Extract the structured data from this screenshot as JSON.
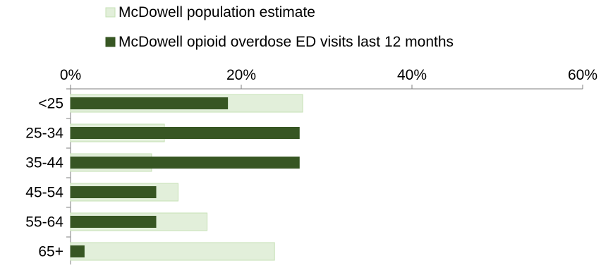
{
  "chart_data": {
    "type": "bar",
    "orientation": "horizontal",
    "title": "",
    "xlabel": "",
    "ylabel": "",
    "categories": [
      "<25",
      "25-34",
      "35-44",
      "45-54",
      "55-64",
      "65+"
    ],
    "series": [
      {
        "name": "McDowell population estimate",
        "values": [
          27.2,
          11.0,
          9.5,
          12.6,
          16.0,
          23.9
        ],
        "color": "#e2efda",
        "stroke": "#c5e0b4"
      },
      {
        "name": "McDowell opioid overdose ED visits last 12 months",
        "values": [
          18.4,
          26.8,
          26.8,
          10.0,
          10.0,
          1.6
        ],
        "color": "#375623",
        "stroke": "#375623"
      }
    ],
    "xlim": [
      0,
      60
    ],
    "xticks": [
      0,
      20,
      40,
      60
    ],
    "tick_suffix": "%",
    "axis_position": "top",
    "legend_position": "top",
    "grid": false
  }
}
